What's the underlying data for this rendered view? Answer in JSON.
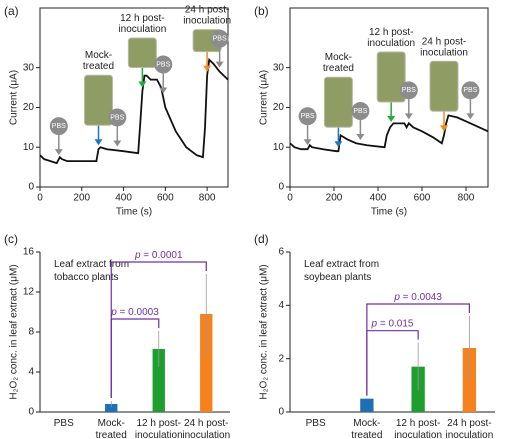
{
  "chart_data": [
    {
      "type": "line",
      "label": "(a)",
      "xlabel": "Time (s)",
      "ylabel": "Current (μA)",
      "color": "#111111",
      "x": [
        0,
        20,
        50,
        80,
        95,
        105,
        130,
        200,
        270,
        280,
        290,
        320,
        400,
        470,
        480,
        490,
        500,
        510,
        530,
        560,
        580,
        600,
        650,
        700,
        750,
        780,
        790,
        800,
        810,
        830,
        860,
        900
      ],
      "y": [
        8,
        7,
        6.5,
        6,
        7.5,
        7,
        6.5,
        6.5,
        6.5,
        9.5,
        10,
        9.5,
        9,
        8.5,
        16,
        24,
        28,
        28,
        27,
        27,
        25,
        20,
        14,
        10,
        8,
        7.5,
        15,
        28,
        32,
        31,
        29,
        27
      ],
      "xlim": [
        0,
        900
      ],
      "xticks": [
        0,
        200,
        400,
        600,
        800
      ],
      "ylim": [
        0,
        45
      ],
      "yticks": [
        0,
        10,
        20,
        30
      ],
      "markers": [
        {
          "x": 90,
          "label": "PBS",
          "color": "#8c8c8c"
        },
        {
          "x": 280,
          "label": "Mock-treated",
          "color": "#1f77c4"
        },
        {
          "x": 370,
          "label": "PBS",
          "color": "#8c8c8c"
        },
        {
          "x": 490,
          "label": "12 h post-inoculation",
          "color": "#1fae3a"
        },
        {
          "x": 590,
          "label": "PBS",
          "color": "#8c8c8c"
        },
        {
          "x": 800,
          "label": "24 h post-inoculation",
          "color": "#f28a1e"
        },
        {
          "x": 860,
          "label": "PBS",
          "color": "#8c8c8c"
        }
      ]
    },
    {
      "type": "line",
      "label": "(b)",
      "xlabel": "Time (s)",
      "ylabel": "Current (μA)",
      "color": "#111111",
      "x": [
        0,
        20,
        50,
        80,
        90,
        100,
        150,
        210,
        220,
        230,
        260,
        300,
        350,
        430,
        440,
        455,
        470,
        520,
        530,
        540,
        560,
        600,
        650,
        690,
        700,
        710,
        720,
        760,
        820,
        900
      ],
      "y": [
        11,
        10,
        9.5,
        9.5,
        10.5,
        10,
        9.5,
        9,
        9,
        13,
        12,
        11,
        10.5,
        10,
        13,
        15,
        16,
        16,
        15,
        16,
        15,
        14,
        12.5,
        11,
        13,
        16,
        18,
        17.5,
        16,
        14
      ],
      "xlim": [
        0,
        900
      ],
      "xticks": [
        0,
        200,
        400,
        600,
        800
      ],
      "ylim": [
        0,
        45
      ],
      "yticks": [
        0,
        10,
        20,
        30
      ],
      "markers": [
        {
          "x": 80,
          "label": "PBS",
          "color": "#8c8c8c"
        },
        {
          "x": 220,
          "label": "Mock-treated",
          "color": "#1f77c4"
        },
        {
          "x": 320,
          "label": "PBS",
          "color": "#8c8c8c"
        },
        {
          "x": 460,
          "label": "12 h post-inoculation",
          "color": "#1fae3a"
        },
        {
          "x": 540,
          "label": "PBS",
          "color": "#8c8c8c"
        },
        {
          "x": 700,
          "label": "24 h post-inoculation",
          "color": "#f28a1e"
        },
        {
          "x": 820,
          "label": "PBS",
          "color": "#8c8c8c"
        }
      ]
    },
    {
      "type": "bar",
      "label": "(c)",
      "ylabel": "H₂O₂ conc. in leaf extract (μM)",
      "note": "Leaf extract from tobacco plants",
      "categories": [
        "PBS",
        "Mock-treated",
        "12 h post-inoculation",
        "24 h post-inoculation"
      ],
      "values": [
        0,
        0.8,
        6.3,
        9.8
      ],
      "errors": [
        null,
        0.3,
        1.8,
        4
      ],
      "colors": [
        "#1f6fb5",
        "#1f6fb5",
        "#1e9e2e",
        "#f5821f"
      ],
      "ylim": [
        0,
        16
      ],
      "yticks": [
        0,
        4,
        8,
        12,
        16
      ],
      "comparisons": [
        {
          "pair": [
            1,
            2
          ],
          "label": "p = 0.0003"
        },
        {
          "pair": [
            1,
            3
          ],
          "label": "p = 0.0001"
        }
      ],
      "comparison_color": "#7030a0"
    },
    {
      "type": "bar",
      "label": "(d)",
      "ylabel": "H₂O₂ conc. in leaf extract (μM)",
      "note": "Leaf extract from soybean plants",
      "categories": [
        "PBS",
        "Mock-treated",
        "12 h post-inoculation",
        "24 h post-inoculation"
      ],
      "values": [
        0,
        0.5,
        1.7,
        2.4
      ],
      "errors": [
        null,
        null,
        0.9,
        1.2
      ],
      "colors": [
        "#1f6fb5",
        "#1f6fb5",
        "#1e9e2e",
        "#f5821f"
      ],
      "ylim": [
        0,
        6
      ],
      "yticks": [
        0,
        2,
        4,
        6
      ],
      "comparisons": [
        {
          "pair": [
            1,
            2
          ],
          "label": "p = 0.015"
        },
        {
          "pair": [
            1,
            3
          ],
          "label": "p = 0.0043"
        }
      ],
      "comparison_color": "#7030a0"
    }
  ]
}
